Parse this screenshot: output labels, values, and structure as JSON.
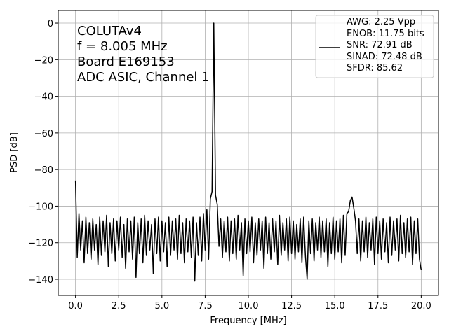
{
  "chart_data": {
    "type": "line",
    "annotation_lines": [
      "COLUTAv4",
      "f = 8.005 MHz",
      "Board E169153",
      "ADC ASIC, Channel 1"
    ],
    "x_label": "Frequency [MHz]",
    "y_label": "PSD [dB]",
    "xlim": [
      -1,
      21
    ],
    "ylim": [
      -148.8,
      6.9
    ],
    "xticks": [
      {
        "value": 0,
        "label": "0.0"
      },
      2.5,
      {
        "value": 5,
        "label": "5.0"
      },
      7.5,
      {
        "value": 10,
        "label": "10.0"
      },
      12.5,
      {
        "value": 15,
        "label": "15.0"
      },
      17.5,
      {
        "value": 20,
        "label": "20.0"
      }
    ],
    "yticks": [
      0,
      {
        "value": -20,
        "label": "−20"
      },
      {
        "value": -40,
        "label": "−40"
      },
      {
        "value": -60,
        "label": "−60"
      },
      {
        "value": -80,
        "label": "−80"
      },
      {
        "value": -100,
        "label": "−100"
      },
      {
        "value": -120,
        "label": "−120"
      },
      {
        "value": -140,
        "label": "−140"
      }
    ],
    "grid": true,
    "legend": "upper right",
    "x": [
      0,
      0.1,
      0.2,
      0.3,
      0.4,
      0.5,
      0.6,
      0.7,
      0.8,
      0.9,
      1,
      1.1,
      1.2,
      1.3,
      1.4,
      1.5,
      1.6,
      1.7,
      1.8,
      1.9,
      2,
      2.1,
      2.2,
      2.3,
      2.4,
      2.5,
      2.6,
      2.7,
      2.8,
      2.9,
      3,
      3.1,
      3.2,
      3.3,
      3.4,
      3.5,
      3.6,
      3.7,
      3.8,
      3.9,
      4,
      4.1,
      4.2,
      4.3,
      4.4,
      4.5,
      4.6,
      4.7,
      4.8,
      4.9,
      5,
      5.1,
      5.2,
      5.3,
      5.4,
      5.5,
      5.6,
      5.7,
      5.8,
      5.9,
      6,
      6.1,
      6.2,
      6.3,
      6.4,
      6.5,
      6.6,
      6.7,
      6.8,
      6.9,
      7,
      7.1,
      7.2,
      7.3,
      7.4,
      7.5,
      7.6,
      7.7,
      7.8,
      7.9,
      8,
      8.1,
      8.2,
      8.3,
      8.4,
      8.5,
      8.6,
      8.7,
      8.8,
      8.9,
      9,
      9.1,
      9.2,
      9.3,
      9.4,
      9.5,
      9.6,
      9.7,
      9.8,
      9.9,
      10,
      10.1,
      10.2,
      10.3,
      10.4,
      10.5,
      10.6,
      10.7,
      10.8,
      10.9,
      11,
      11.1,
      11.2,
      11.3,
      11.4,
      11.5,
      11.6,
      11.7,
      11.8,
      11.9,
      12,
      12.1,
      12.2,
      12.3,
      12.4,
      12.5,
      12.6,
      12.7,
      12.8,
      12.9,
      13,
      13.1,
      13.2,
      13.3,
      13.4,
      13.5,
      13.6,
      13.7,
      13.8,
      13.9,
      14,
      14.1,
      14.2,
      14.3,
      14.4,
      14.5,
      14.6,
      14.7,
      14.8,
      14.9,
      15,
      15.1,
      15.2,
      15.3,
      15.4,
      15.5,
      15.6,
      15.7,
      15.8,
      15.9,
      16,
      16.1,
      16.2,
      16.3,
      16.4,
      16.5,
      16.6,
      16.7,
      16.8,
      16.9,
      17,
      17.1,
      17.2,
      17.3,
      17.4,
      17.5,
      17.6,
      17.7,
      17.8,
      17.9,
      18,
      18.1,
      18.2,
      18.3,
      18.4,
      18.5,
      18.6,
      18.7,
      18.8,
      18.9,
      19,
      19.1,
      19.2,
      19.3,
      19.4,
      19.5,
      19.6,
      19.7,
      19.8,
      19.9,
      20
    ],
    "series": [
      {
        "name": "AWG: 2.25 Vpp\nENOB: 11.75 bits\nSNR: 72.91 dB\nSINAD: 72.48 dB\nSFDR: 85.62",
        "color": "#000000",
        "values": [
          -86,
          -128,
          -104,
          -124,
          -108,
          -131,
          -106,
          -126,
          -109,
          -129,
          -107,
          -124,
          -110,
          -132,
          -106,
          -127,
          -108,
          -125,
          -105,
          -133,
          -109,
          -126,
          -107,
          -130,
          -108,
          -124,
          -106,
          -128,
          -110,
          -134,
          -107,
          -125,
          -108,
          -129,
          -106,
          -139,
          -109,
          -126,
          -107,
          -131,
          -105,
          -127,
          -108,
          -124,
          -110,
          -137,
          -107,
          -126,
          -106,
          -130,
          -108,
          -125,
          -109,
          -133,
          -106,
          -127,
          -108,
          -124,
          -107,
          -129,
          -105,
          -126,
          -109,
          -131,
          -107,
          -125,
          -108,
          -128,
          -106,
          -141,
          -109,
          -127,
          -106,
          -130,
          -104,
          -124,
          -102,
          -129,
          -96,
          -92,
          0,
          -94,
          -99,
          -122,
          -107,
          -128,
          -108,
          -125,
          -106,
          -130,
          -108,
          -126,
          -107,
          -129,
          -105,
          -124,
          -109,
          -138,
          -107,
          -126,
          -108,
          -125,
          -106,
          -131,
          -109,
          -127,
          -107,
          -124,
          -108,
          -134,
          -106,
          -126,
          -109,
          -129,
          -107,
          -125,
          -108,
          -132,
          -105,
          -127,
          -109,
          -124,
          -107,
          -130,
          -106,
          -126,
          -108,
          -129,
          -110,
          -125,
          -107,
          -131,
          -106,
          -127,
          -140,
          -108,
          -126,
          -107,
          -130,
          -109,
          -124,
          -106,
          -128,
          -108,
          -125,
          -107,
          -133,
          -109,
          -126,
          -106,
          -129,
          -108,
          -125,
          -107,
          -131,
          -105,
          -127,
          -104,
          -103,
          -97,
          -95,
          -101,
          -108,
          -126,
          -107,
          -130,
          -108,
          -125,
          -106,
          -128,
          -109,
          -124,
          -107,
          -132,
          -106,
          -126,
          -108,
          -129,
          -107,
          -125,
          -109,
          -131,
          -106,
          -127,
          -108,
          -124,
          -107,
          -130,
          -105,
          -126,
          -109,
          -128,
          -107,
          -125,
          -106,
          -132,
          -108,
          -126,
          -107,
          -129,
          -135
        ]
      }
    ]
  }
}
